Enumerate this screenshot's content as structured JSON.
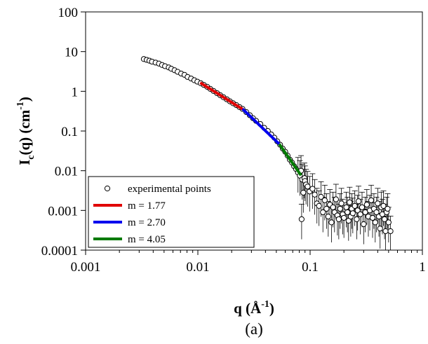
{
  "chart_data": {
    "type": "scatter",
    "x_scale": "log",
    "y_scale": "log",
    "xlim": [
      0.001,
      1
    ],
    "ylim": [
      0.0001,
      100
    ],
    "x_ticks": [
      {
        "value": 0.001,
        "label": "0.001"
      },
      {
        "value": 0.01,
        "label": "0.01"
      },
      {
        "value": 0.1,
        "label": "0.1"
      },
      {
        "value": 1,
        "label": "1"
      }
    ],
    "y_ticks": [
      {
        "value": 100,
        "label": "100"
      },
      {
        "value": 10,
        "label": "10"
      },
      {
        "value": 1,
        "label": "1"
      },
      {
        "value": 0.1,
        "label": "0.1"
      },
      {
        "value": 0.01,
        "label": "0.01"
      },
      {
        "value": 0.001,
        "label": "0.001"
      },
      {
        "value": 0.0001,
        "label": "0.0001"
      }
    ],
    "xlabel": {
      "main": "q (",
      "unit": "Å",
      "sup": "-1",
      "close": ")"
    },
    "ylabel": {
      "main": "I",
      "sub": "c",
      "mid": "(q) (cm",
      "sup": "-1",
      "close": ")"
    },
    "caption": "(a)",
    "grid": false,
    "legend": {
      "placement": "bottom-left",
      "entries": [
        {
          "label": "experimental points",
          "marker": "open-circle"
        },
        {
          "label": "m = 1.77",
          "color": "#e00000"
        },
        {
          "label": "m = 2.70",
          "color": "#0000ee"
        },
        {
          "label": "m = 4.05",
          "color": "#007a00"
        }
      ]
    },
    "series": [
      {
        "name": "experimental points",
        "marker": "open-circle",
        "points": [
          [
            0.0033,
            6.5
          ],
          [
            0.0035,
            6.2
          ],
          [
            0.0037,
            5.9
          ],
          [
            0.0039,
            5.6
          ],
          [
            0.0042,
            5.3
          ],
          [
            0.0045,
            5.0
          ],
          [
            0.0048,
            4.6
          ],
          [
            0.0051,
            4.3
          ],
          [
            0.0055,
            4.0
          ],
          [
            0.0058,
            3.7
          ],
          [
            0.0062,
            3.4
          ],
          [
            0.0066,
            3.1
          ],
          [
            0.0071,
            2.8
          ],
          [
            0.0076,
            2.6
          ],
          [
            0.0081,
            2.3
          ],
          [
            0.0087,
            2.1
          ],
          [
            0.0093,
            1.9
          ],
          [
            0.0099,
            1.75
          ],
          [
            0.0106,
            1.6
          ],
          [
            0.0113,
            1.45
          ],
          [
            0.0121,
            1.3
          ],
          [
            0.0129,
            1.15
          ],
          [
            0.0138,
            1.02
          ],
          [
            0.0148,
            0.9
          ],
          [
            0.0158,
            0.8
          ],
          [
            0.0169,
            0.71
          ],
          [
            0.0181,
            0.63
          ],
          [
            0.0193,
            0.56
          ],
          [
            0.0206,
            0.5
          ],
          [
            0.022,
            0.45
          ],
          [
            0.0235,
            0.4
          ],
          [
            0.025,
            0.36
          ],
          [
            0.027,
            0.3
          ],
          [
            0.029,
            0.25
          ],
          [
            0.031,
            0.21
          ],
          [
            0.033,
            0.18
          ],
          [
            0.036,
            0.15
          ],
          [
            0.039,
            0.12
          ],
          [
            0.042,
            0.1
          ],
          [
            0.045,
            0.082
          ],
          [
            0.048,
            0.068
          ],
          [
            0.051,
            0.055
          ],
          [
            0.054,
            0.045
          ],
          [
            0.057,
            0.036
          ],
          [
            0.06,
            0.03
          ],
          [
            0.063,
            0.024
          ],
          [
            0.066,
            0.019
          ],
          [
            0.069,
            0.016
          ],
          [
            0.072,
            0.013
          ],
          [
            0.075,
            0.011
          ],
          [
            0.078,
            0.009
          ],
          [
            0.081,
            0.0075
          ],
          [
            0.083,
            0.01
          ],
          [
            0.085,
            0.006
          ],
          [
            0.087,
            0.0028
          ],
          [
            0.089,
            0.0065
          ],
          [
            0.09,
            0.0055
          ],
          [
            0.092,
            0.0045
          ],
          [
            0.095,
            0.004
          ],
          [
            0.099,
            0.003
          ],
          [
            0.084,
            0.0006
          ],
          [
            0.105,
            0.0035
          ],
          [
            0.11,
            0.0025
          ],
          [
            0.115,
            0.0015
          ],
          [
            0.12,
            0.0013
          ],
          [
            0.125,
            0.0022
          ],
          [
            0.13,
            0.0009
          ],
          [
            0.135,
            0.0018
          ],
          [
            0.14,
            0.0011
          ],
          [
            0.145,
            0.0007
          ],
          [
            0.15,
            0.0014
          ],
          [
            0.155,
            0.0005
          ],
          [
            0.16,
            0.0012
          ],
          [
            0.165,
            0.0009
          ],
          [
            0.17,
            0.0019
          ],
          [
            0.175,
            0.00075
          ],
          [
            0.18,
            0.0006
          ],
          [
            0.185,
            0.0011
          ],
          [
            0.19,
            0.0015
          ],
          [
            0.195,
            0.0008
          ],
          [
            0.2,
            0.00065
          ],
          [
            0.21,
            0.0012
          ],
          [
            0.215,
            0.0009
          ],
          [
            0.22,
            0.00055
          ],
          [
            0.225,
            0.0016
          ],
          [
            0.23,
            0.0007
          ],
          [
            0.235,
            0.0011
          ],
          [
            0.24,
            0.00085
          ],
          [
            0.25,
            0.0013
          ],
          [
            0.26,
            0.0006
          ],
          [
            0.265,
            0.001
          ],
          [
            0.27,
            0.0017
          ],
          [
            0.28,
            0.0008
          ],
          [
            0.29,
            0.0012
          ],
          [
            0.3,
            0.00045
          ],
          [
            0.31,
            0.0009
          ],
          [
            0.32,
            0.0014
          ],
          [
            0.33,
            0.0007
          ],
          [
            0.34,
            0.001
          ],
          [
            0.35,
            0.0018
          ],
          [
            0.36,
            0.00065
          ],
          [
            0.37,
            0.0011
          ],
          [
            0.38,
            0.0005
          ],
          [
            0.39,
            0.0009
          ],
          [
            0.4,
            0.0015
          ],
          [
            0.41,
            0.0007
          ],
          [
            0.42,
            0.00035
          ],
          [
            0.43,
            0.0012
          ],
          [
            0.44,
            0.0008
          ],
          [
            0.45,
            0.0013
          ],
          [
            0.46,
            0.0006
          ],
          [
            0.47,
            0.0003
          ],
          [
            0.48,
            0.0009
          ],
          [
            0.49,
            0.0011
          ],
          [
            0.5,
            0.0005
          ],
          [
            0.52,
            0.0003
          ]
        ]
      },
      {
        "name": "m = 1.77",
        "color": "#e00000",
        "fit": {
          "x": [
            0.0105,
            0.025
          ],
          "slope": -1.77,
          "x0": 0.0105,
          "y0": 1.65
        }
      },
      {
        "name": "m = 2.70",
        "color": "#0000ee",
        "fit": {
          "x": [
            0.025,
            0.053
          ],
          "slope": -2.7,
          "x0": 0.025,
          "y0": 0.36
        }
      },
      {
        "name": "m = 4.05",
        "color": "#007a00",
        "fit": {
          "x": [
            0.053,
            0.083
          ],
          "slope": -4.05,
          "x0": 0.053,
          "y0": 0.047
        }
      }
    ]
  }
}
